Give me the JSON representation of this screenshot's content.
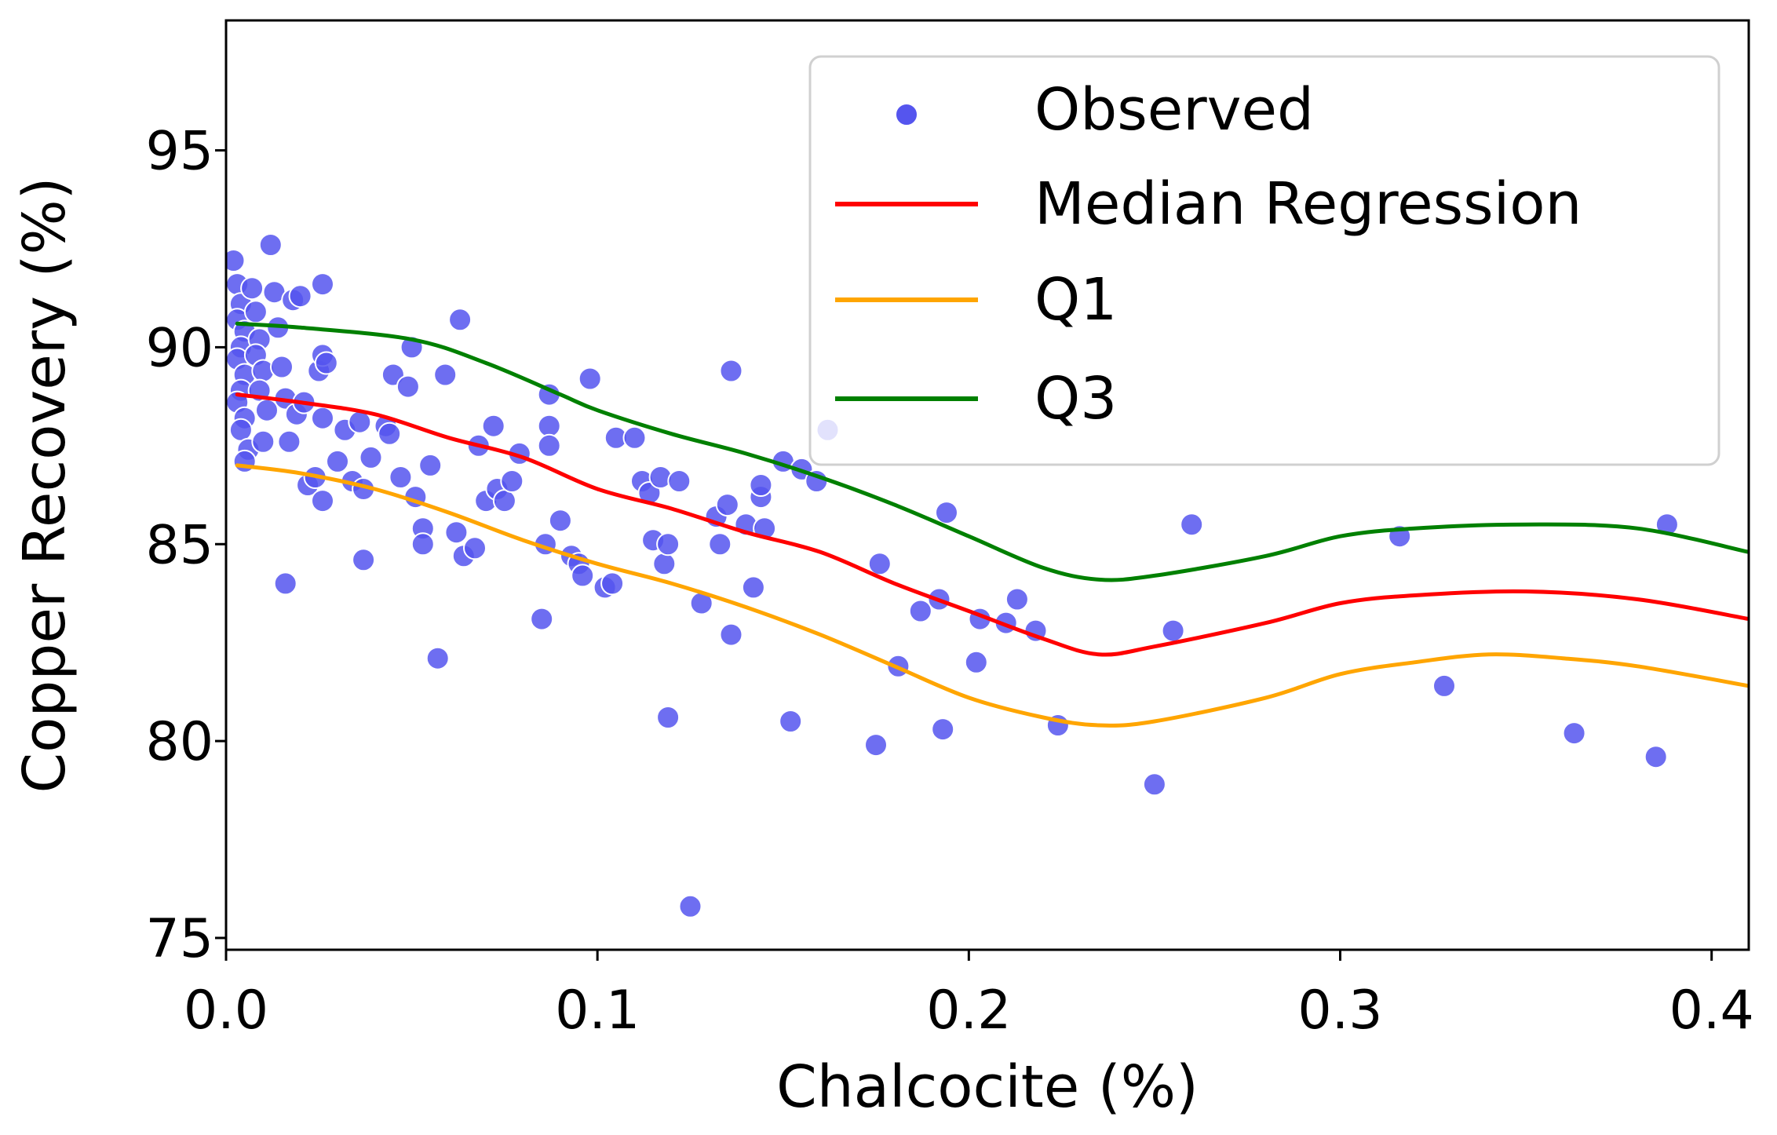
{
  "chart_data": {
    "type": "scatter",
    "title": "",
    "xlabel": "Chalcocite (%)",
    "ylabel": "Copper Recovery (%)",
    "xlim": [
      0.0,
      0.41
    ],
    "ylim": [
      74.7,
      98.3
    ],
    "xticks": [
      0.0,
      0.1,
      0.2,
      0.3,
      0.4
    ],
    "xtick_labels": [
      "0.0",
      "0.1",
      "0.2",
      "0.3",
      "0.4"
    ],
    "yticks": [
      75,
      80,
      85,
      90,
      95
    ],
    "ytick_labels": [
      "75",
      "80",
      "85",
      "90",
      "95"
    ],
    "grid": false,
    "legend_position": "top-right",
    "legend": [
      {
        "label": "Observed",
        "kind": "marker",
        "color": "#5555ee"
      },
      {
        "label": "Median Regression",
        "kind": "line",
        "color": "#ff0000"
      },
      {
        "label": "Q1",
        "kind": "line",
        "color": "#ffa500"
      },
      {
        "label": "Q3",
        "kind": "line",
        "color": "#008000"
      }
    ],
    "scatter": {
      "name": "Observed",
      "color": "#5555ee",
      "points": [
        [
          0.002,
          92.2
        ],
        [
          0.003,
          91.6
        ],
        [
          0.004,
          91.1
        ],
        [
          0.003,
          90.7
        ],
        [
          0.005,
          90.4
        ],
        [
          0.004,
          90.0
        ],
        [
          0.003,
          89.7
        ],
        [
          0.005,
          89.3
        ],
        [
          0.004,
          88.9
        ],
        [
          0.003,
          88.6
        ],
        [
          0.005,
          88.2
        ],
        [
          0.004,
          87.9
        ],
        [
          0.006,
          87.4
        ],
        [
          0.005,
          87.1
        ],
        [
          0.007,
          91.5
        ],
        [
          0.008,
          90.9
        ],
        [
          0.009,
          90.2
        ],
        [
          0.008,
          89.8
        ],
        [
          0.01,
          89.4
        ],
        [
          0.009,
          88.9
        ],
        [
          0.011,
          88.4
        ],
        [
          0.01,
          87.6
        ],
        [
          0.012,
          92.6
        ],
        [
          0.013,
          91.4
        ],
        [
          0.014,
          90.5
        ],
        [
          0.015,
          89.5
        ],
        [
          0.016,
          88.7
        ],
        [
          0.017,
          87.6
        ],
        [
          0.016,
          84.0
        ],
        [
          0.018,
          91.2
        ],
        [
          0.019,
          88.3
        ],
        [
          0.02,
          91.3
        ],
        [
          0.021,
          88.6
        ],
        [
          0.022,
          86.5
        ],
        [
          0.024,
          86.7
        ],
        [
          0.025,
          89.4
        ],
        [
          0.026,
          91.6
        ],
        [
          0.026,
          89.8
        ],
        [
          0.026,
          88.2
        ],
        [
          0.026,
          86.1
        ],
        [
          0.027,
          89.6
        ],
        [
          0.03,
          87.1
        ],
        [
          0.032,
          87.9
        ],
        [
          0.034,
          86.6
        ],
        [
          0.036,
          88.1
        ],
        [
          0.037,
          86.4
        ],
        [
          0.037,
          84.6
        ],
        [
          0.039,
          87.2
        ],
        [
          0.043,
          88.0
        ],
        [
          0.044,
          87.8
        ],
        [
          0.045,
          89.3
        ],
        [
          0.047,
          86.7
        ],
        [
          0.049,
          89.0
        ],
        [
          0.05,
          90.0
        ],
        [
          0.051,
          86.2
        ],
        [
          0.053,
          85.4
        ],
        [
          0.053,
          85.0
        ],
        [
          0.055,
          87.0
        ],
        [
          0.057,
          82.1
        ],
        [
          0.059,
          89.3
        ],
        [
          0.062,
          85.3
        ],
        [
          0.063,
          90.7
        ],
        [
          0.064,
          84.7
        ],
        [
          0.067,
          84.9
        ],
        [
          0.068,
          87.5
        ],
        [
          0.07,
          86.1
        ],
        [
          0.072,
          88.0
        ],
        [
          0.073,
          86.4
        ],
        [
          0.075,
          86.1
        ],
        [
          0.077,
          86.6
        ],
        [
          0.079,
          87.3
        ],
        [
          0.085,
          83.1
        ],
        [
          0.086,
          85.0
        ],
        [
          0.087,
          88.8
        ],
        [
          0.087,
          88.0
        ],
        [
          0.087,
          87.5
        ],
        [
          0.09,
          85.6
        ],
        [
          0.093,
          84.7
        ],
        [
          0.095,
          84.5
        ],
        [
          0.096,
          84.2
        ],
        [
          0.098,
          89.2
        ],
        [
          0.102,
          83.9
        ],
        [
          0.104,
          84.0
        ],
        [
          0.105,
          87.7
        ],
        [
          0.11,
          87.7
        ],
        [
          0.112,
          86.6
        ],
        [
          0.114,
          86.3
        ],
        [
          0.115,
          85.1
        ],
        [
          0.117,
          86.7
        ],
        [
          0.118,
          84.5
        ],
        [
          0.119,
          85.0
        ],
        [
          0.119,
          80.6
        ],
        [
          0.122,
          86.6
        ],
        [
          0.125,
          75.8
        ],
        [
          0.128,
          83.5
        ],
        [
          0.132,
          85.7
        ],
        [
          0.133,
          85.0
        ],
        [
          0.135,
          86.0
        ],
        [
          0.136,
          89.4
        ],
        [
          0.136,
          82.7
        ],
        [
          0.14,
          85.5
        ],
        [
          0.142,
          83.9
        ],
        [
          0.144,
          86.2
        ],
        [
          0.144,
          86.5
        ],
        [
          0.145,
          85.4
        ],
        [
          0.15,
          87.1
        ],
        [
          0.152,
          80.5
        ],
        [
          0.155,
          86.9
        ],
        [
          0.159,
          86.6
        ],
        [
          0.162,
          87.9
        ],
        [
          0.175,
          79.9
        ],
        [
          0.176,
          84.5
        ],
        [
          0.181,
          81.9
        ],
        [
          0.187,
          83.3
        ],
        [
          0.192,
          83.6
        ],
        [
          0.193,
          80.3
        ],
        [
          0.194,
          85.8
        ],
        [
          0.202,
          82.0
        ],
        [
          0.203,
          83.1
        ],
        [
          0.21,
          83.0
        ],
        [
          0.213,
          83.6
        ],
        [
          0.218,
          82.8
        ],
        [
          0.224,
          80.4
        ],
        [
          0.25,
          78.9
        ],
        [
          0.255,
          82.8
        ],
        [
          0.26,
          85.5
        ],
        [
          0.316,
          85.2
        ],
        [
          0.328,
          81.4
        ],
        [
          0.363,
          80.2
        ],
        [
          0.385,
          79.6
        ],
        [
          0.388,
          85.5
        ]
      ]
    },
    "series": [
      {
        "name": "Median Regression",
        "color": "#ff0000",
        "x": [
          0.003,
          0.02,
          0.04,
          0.06,
          0.08,
          0.1,
          0.12,
          0.14,
          0.16,
          0.18,
          0.2,
          0.22,
          0.235,
          0.25,
          0.28,
          0.3,
          0.32,
          0.35,
          0.38,
          0.41
        ],
        "y": [
          88.8,
          88.6,
          88.3,
          87.7,
          87.2,
          86.4,
          85.9,
          85.3,
          84.8,
          84.0,
          83.3,
          82.6,
          82.2,
          82.4,
          83.0,
          83.5,
          83.7,
          83.8,
          83.6,
          83.1
        ]
      },
      {
        "name": "Q1",
        "color": "#ffa500",
        "x": [
          0.003,
          0.02,
          0.04,
          0.06,
          0.08,
          0.1,
          0.12,
          0.14,
          0.16,
          0.18,
          0.2,
          0.22,
          0.235,
          0.25,
          0.28,
          0.3,
          0.32,
          0.34,
          0.36,
          0.38,
          0.41
        ],
        "y": [
          87.0,
          86.8,
          86.4,
          85.8,
          85.1,
          84.5,
          84.0,
          83.4,
          82.7,
          81.9,
          81.1,
          80.6,
          80.4,
          80.5,
          81.1,
          81.7,
          82.0,
          82.2,
          82.1,
          81.9,
          81.4
        ]
      },
      {
        "name": "Q3",
        "color": "#008000",
        "x": [
          0.003,
          0.02,
          0.05,
          0.07,
          0.09,
          0.1,
          0.12,
          0.14,
          0.16,
          0.18,
          0.2,
          0.22,
          0.235,
          0.25,
          0.28,
          0.3,
          0.32,
          0.35,
          0.38,
          0.41
        ],
        "y": [
          90.6,
          90.5,
          90.2,
          89.6,
          88.8,
          88.4,
          87.8,
          87.3,
          86.7,
          86.0,
          85.2,
          84.4,
          84.1,
          84.2,
          84.7,
          85.2,
          85.4,
          85.5,
          85.4,
          84.8
        ]
      }
    ]
  }
}
